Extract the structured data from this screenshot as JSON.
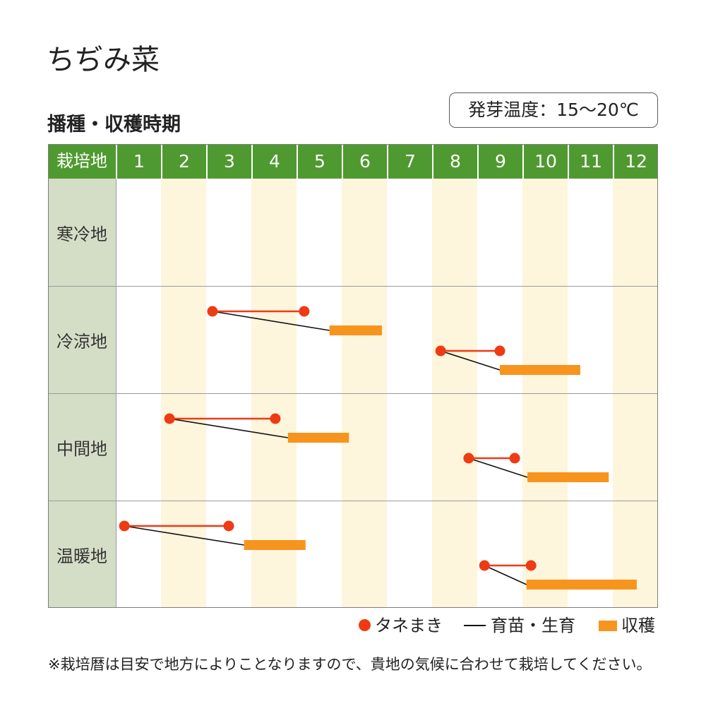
{
  "badge": {
    "text": "発芽温度：15〜20℃"
  },
  "chart_data": {
    "type": "bar",
    "title": "ちぢみ菜",
    "subtitle": "播種・収穫時期",
    "region_header": "栽培地",
    "categories": [
      "1",
      "2",
      "3",
      "4",
      "5",
      "6",
      "7",
      "8",
      "9",
      "10",
      "11",
      "12"
    ],
    "xlim": [
      1,
      13
    ],
    "regions": [
      {
        "name": "寒冷地",
        "periods": []
      },
      {
        "name": "冷涼地",
        "periods": [
          {
            "sowing": [
              3.14,
              5.17
            ],
            "harvest": [
              5.73,
              6.89
            ]
          },
          {
            "sowing": [
              8.19,
              9.5
            ],
            "harvest": [
              9.5,
              11.28
            ]
          }
        ]
      },
      {
        "name": "中間地",
        "periods": [
          {
            "sowing": [
              2.19,
              4.53
            ],
            "harvest": [
              4.81,
              6.16
            ]
          },
          {
            "sowing": [
              8.81,
              9.83
            ],
            "harvest": [
              10.11,
              11.91
            ]
          }
        ]
      },
      {
        "name": "温暖地",
        "periods": [
          {
            "sowing": [
              1.19,
              3.5
            ],
            "harvest": [
              3.84,
              5.2
            ]
          },
          {
            "sowing": [
              9.16,
              10.19
            ],
            "harvest": [
              10.09,
              12.53
            ]
          }
        ]
      }
    ],
    "legend": [
      {
        "label": "タネまき",
        "symbol": "dot-icon"
      },
      {
        "label": "育苗・生育",
        "symbol": "line-icon"
      },
      {
        "label": "収穫",
        "symbol": "bar-icon"
      }
    ],
    "legend_position": "bottom-right"
  },
  "colors": {
    "header": "#4f9a30",
    "region_column": "#d4dec6",
    "alt_month": "#fdf5dc",
    "sowing": "#ee3b14",
    "growing": "#111111",
    "harvest": "#f7941d"
  },
  "footnote": "※栽培暦は目安で地方によりことなりますので、貴地の気候に合わせて栽培してください。"
}
